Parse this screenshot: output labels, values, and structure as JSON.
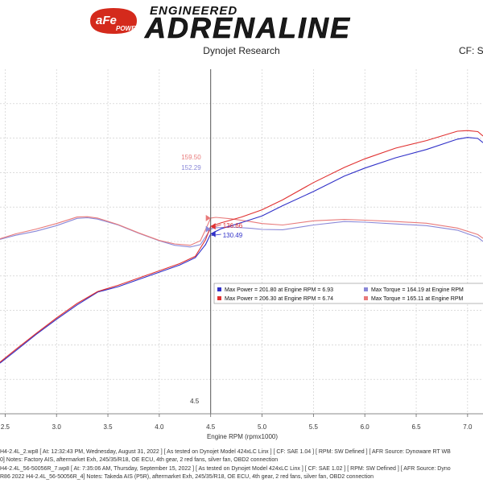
{
  "header": {
    "brand_top": "ENGINEERED",
    "brand_main": "ADRENALINE",
    "logo_text": "aFe",
    "logo_sub": "POWER",
    "subtitle": "Dynojet Research",
    "cf_label": "CF: S"
  },
  "colors": {
    "blue_power": "#3030c8",
    "red_power": "#e03030",
    "blue_torque": "#8a88d8",
    "red_torque": "#e87a7a",
    "grid": "#c8c8c8",
    "plot_bg": "#ffffff",
    "logo_red": "#d42a1c"
  },
  "chart_data": {
    "type": "line",
    "xlabel": "Engine RPM (rpmx1000)",
    "xlim": [
      2.45,
      7.15
    ],
    "ylim": [
      0,
      100
    ],
    "x_ticks": [
      "2.5",
      "3.0",
      "3.5",
      "4.0",
      "4.5",
      "5.0",
      "5.5",
      "6.0",
      "6.5",
      "7.0"
    ],
    "x_tick_values": [
      2.5,
      3.0,
      3.5,
      4.0,
      4.5,
      5.0,
      5.5,
      6.0,
      6.5,
      7.0
    ],
    "cursor": {
      "x": 4.5,
      "label": "4.5"
    },
    "series": [
      {
        "color_key": "blue_torque",
        "points": [
          [
            2.45,
            50.6
          ],
          [
            2.6,
            51.8
          ],
          [
            2.8,
            53.0
          ],
          [
            3.0,
            54.6
          ],
          [
            3.2,
            56.7
          ],
          [
            3.3,
            56.9
          ],
          [
            3.4,
            56.5
          ],
          [
            3.6,
            54.8
          ],
          [
            3.8,
            52.4
          ],
          [
            4.0,
            50.2
          ],
          [
            4.15,
            48.9
          ],
          [
            4.3,
            48.4
          ],
          [
            4.4,
            49.1
          ],
          [
            4.45,
            51.3
          ],
          [
            4.5,
            53.6
          ],
          [
            4.55,
            54.0
          ],
          [
            4.7,
            54.2
          ],
          [
            4.9,
            53.8
          ],
          [
            5.0,
            53.5
          ],
          [
            5.2,
            53.4
          ],
          [
            5.5,
            54.8
          ],
          [
            5.8,
            55.8
          ],
          [
            6.0,
            55.6
          ],
          [
            6.3,
            55.1
          ],
          [
            6.6,
            54.6
          ],
          [
            6.9,
            53.3
          ],
          [
            7.1,
            51.2
          ],
          [
            7.15,
            50.0
          ]
        ]
      },
      {
        "color_key": "red_torque",
        "points": [
          [
            2.45,
            50.8
          ],
          [
            2.6,
            52.2
          ],
          [
            2.8,
            53.6
          ],
          [
            3.0,
            55.2
          ],
          [
            3.2,
            57.1
          ],
          [
            3.3,
            57.2
          ],
          [
            3.4,
            56.8
          ],
          [
            3.6,
            54.9
          ],
          [
            3.8,
            52.5
          ],
          [
            4.0,
            50.3
          ],
          [
            4.15,
            49.3
          ],
          [
            4.3,
            48.9
          ],
          [
            4.4,
            50.2
          ],
          [
            4.45,
            53.4
          ],
          [
            4.5,
            56.8
          ],
          [
            4.55,
            57.0
          ],
          [
            4.7,
            56.6
          ],
          [
            4.9,
            55.7
          ],
          [
            5.0,
            55.2
          ],
          [
            5.2,
            54.8
          ],
          [
            5.5,
            56.0
          ],
          [
            5.8,
            56.4
          ],
          [
            6.0,
            56.2
          ],
          [
            6.3,
            55.8
          ],
          [
            6.6,
            55.3
          ],
          [
            6.9,
            53.9
          ],
          [
            7.1,
            52.0
          ],
          [
            7.15,
            50.9
          ]
        ]
      },
      {
        "color_key": "blue_power",
        "points": [
          [
            2.45,
            14.7
          ],
          [
            2.6,
            18.2
          ],
          [
            2.8,
            23.0
          ],
          [
            3.0,
            27.4
          ],
          [
            3.2,
            31.6
          ],
          [
            3.4,
            35.3
          ],
          [
            3.6,
            36.9
          ],
          [
            3.8,
            39.0
          ],
          [
            4.0,
            41.1
          ],
          [
            4.2,
            43.2
          ],
          [
            4.35,
            45.3
          ],
          [
            4.45,
            49.1
          ],
          [
            4.5,
            52.2
          ],
          [
            4.6,
            53.7
          ],
          [
            4.8,
            55.5
          ],
          [
            5.0,
            57.4
          ],
          [
            5.2,
            60.4
          ],
          [
            5.5,
            64.5
          ],
          [
            5.8,
            69.0
          ],
          [
            6.0,
            71.3
          ],
          [
            6.3,
            74.3
          ],
          [
            6.6,
            76.7
          ],
          [
            6.9,
            79.7
          ],
          [
            7.0,
            80.2
          ],
          [
            7.1,
            79.9
          ],
          [
            7.15,
            78.7
          ]
        ]
      },
      {
        "color_key": "red_power",
        "points": [
          [
            2.45,
            15.0
          ],
          [
            2.6,
            18.6
          ],
          [
            2.8,
            23.3
          ],
          [
            3.0,
            27.8
          ],
          [
            3.2,
            32.0
          ],
          [
            3.4,
            35.5
          ],
          [
            3.6,
            37.3
          ],
          [
            3.8,
            39.4
          ],
          [
            4.0,
            41.5
          ],
          [
            4.2,
            43.6
          ],
          [
            4.35,
            45.7
          ],
          [
            4.45,
            50.5
          ],
          [
            4.5,
            54.4
          ],
          [
            4.6,
            55.4
          ],
          [
            4.8,
            57.1
          ],
          [
            5.0,
            59.2
          ],
          [
            5.2,
            62.1
          ],
          [
            5.5,
            67.1
          ],
          [
            5.8,
            71.5
          ],
          [
            6.0,
            74.0
          ],
          [
            6.3,
            77.1
          ],
          [
            6.6,
            79.3
          ],
          [
            6.9,
            82.0
          ],
          [
            7.0,
            82.2
          ],
          [
            7.1,
            81.9
          ],
          [
            7.15,
            80.6
          ]
        ]
      }
    ],
    "point_labels": [
      {
        "text": "159.50",
        "x": 4.5,
        "y": 56.8,
        "color_key": "red_torque",
        "side": "left"
      },
      {
        "text": "152.29",
        "x": 4.5,
        "y": 53.6,
        "color_key": "blue_torque",
        "side": "left"
      },
      {
        "text": "136.66",
        "x": 4.5,
        "y": 54.4,
        "color_key": "red_power",
        "side": "right-below"
      },
      {
        "text": "130.49",
        "x": 4.5,
        "y": 52.2,
        "color_key": "blue_power",
        "side": "right-below2"
      }
    ],
    "legend": {
      "placement": "center-right",
      "entries": [
        {
          "text": "Max Power = 201.80 at Engine RPM = 6.93",
          "color_key": "blue_power"
        },
        {
          "text": "Max Torque = 164.19 at Engine RPM",
          "color_key": "blue_torque"
        },
        {
          "text": "Max Power = 206.30 at Engine RPM = 6.74",
          "color_key": "red_power"
        },
        {
          "text": "Max Torque = 165.11 at Engine RPM",
          "color_key": "red_torque"
        }
      ]
    }
  },
  "notes": [
    "H4-2.4L_2.wp8 [ At: 12:32:43 PM, Wednesday, August 31, 2022 ] [ As tested on Dynojet Model 424xLC Linx ] [ CF: SAE 1.04 ] [ RPM: SW Defined ] [ AFR Source: Dynoware RT WB",
    "0]  Notes: Factory AIS, aftermarket Exh, 245/35/R18, OE ECU, 4th gear, 2 red fans, silver fan, OBD2 connection",
    "H4-2.4L_56-50056R_7.wp8 [ At: 7:35:06 AM, Thursday, September 15, 2022 ] [ As tested on Dynojet Model 424xLC Linx ] [ CF: SAE 1.02 ] [ RPM: SW Defined ] [ AFR Source: Dyno",
    "R86 2022 H4-2.4L_56-50056R_4]  Notes: Takeda AIS (P5R), aftermarket Exh, 245/35/R18, OE ECU, 4th gear, 2 red fans, silver fan, OBD2 connection"
  ]
}
